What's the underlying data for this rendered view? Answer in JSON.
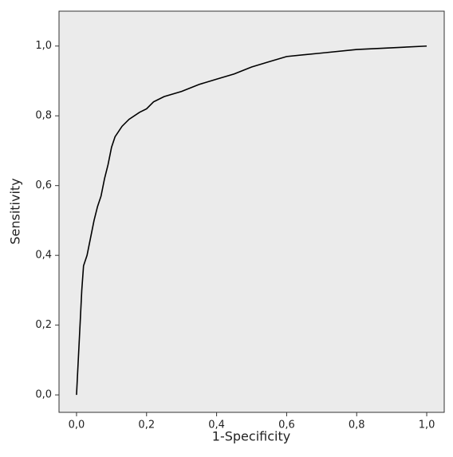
{
  "chart_data": {
    "type": "line",
    "x_label": "1-Specificity",
    "y_label": "Sensitivity",
    "x": [
      0,
      0.005,
      0.01,
      0.015,
      0.02,
      0.03,
      0.04,
      0.05,
      0.06,
      0.07,
      0.08,
      0.09,
      0.1,
      0.11,
      0.13,
      0.15,
      0.18,
      0.2,
      0.22,
      0.25,
      0.3,
      0.35,
      0.4,
      0.45,
      0.5,
      0.55,
      0.6,
      0.7,
      0.8,
      0.9,
      1
    ],
    "series": [
      {
        "color": "#000000",
        "values": [
          0,
          0.1,
          0.2,
          0.3,
          0.37,
          0.4,
          0.45,
          0.5,
          0.54,
          0.57,
          0.62,
          0.66,
          0.71,
          0.74,
          0.77,
          0.79,
          0.81,
          0.82,
          0.84,
          0.855,
          0.87,
          0.89,
          0.905,
          0.92,
          0.94,
          0.955,
          0.97,
          0.98,
          0.99,
          0.995,
          1
        ]
      }
    ],
    "xlim": [
      -0.05,
      1.05
    ],
    "ylim": [
      -0.05,
      1.1
    ],
    "xticks": [
      {
        "value": 0,
        "label": "0,0"
      },
      {
        "value": 0.2,
        "label": "0,2"
      },
      {
        "value": 0.4,
        "label": "0,4"
      },
      {
        "value": 0.6,
        "label": "0,6"
      },
      {
        "value": 0.8,
        "label": "0,8"
      },
      {
        "value": 1,
        "label": "1,0"
      }
    ],
    "yticks": [
      {
        "value": 0,
        "label": "0,0"
      },
      {
        "value": 0.2,
        "label": "0,2"
      },
      {
        "value": 0.4,
        "label": "0,4"
      },
      {
        "value": 0.6,
        "label": "0,6"
      },
      {
        "value": 0.8,
        "label": "0,8"
      },
      {
        "value": 1,
        "label": "1,0"
      }
    ],
    "background": "#ebebeb"
  }
}
